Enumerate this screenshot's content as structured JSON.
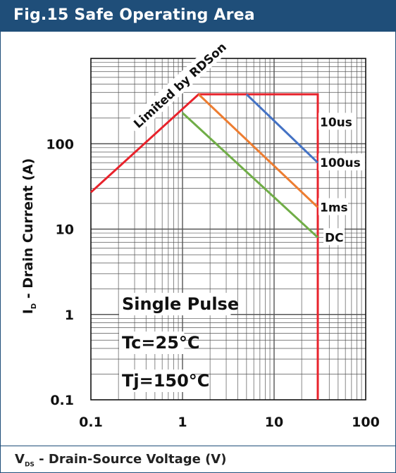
{
  "header": {
    "title": "Fig.15 Safe Operating Area"
  },
  "chart_data": {
    "type": "line",
    "title": "Fig.15 Safe Operating Area",
    "xlabel_main": "V",
    "xlabel_sub": "DS",
    "xlabel_rest": " - Drain-Source Voltage (V)",
    "ylabel_main": "I",
    "ylabel_sub": "D",
    "ylabel_rest": " - Drain Current  (A)",
    "x_scale": "log",
    "y_scale": "log",
    "xlim": [
      0.1,
      100
    ],
    "ylim": [
      0.1,
      1000
    ],
    "grid": true,
    "x_ticks": [
      "0.1",
      "1",
      "10",
      "100"
    ],
    "y_ticks": [
      "0.1",
      "1",
      "10",
      "100"
    ],
    "annotations": {
      "rdson": "Limited by RDSon",
      "single_pulse": "Single Pulse",
      "tc": "Tc=25°C",
      "tj": "Tj=150°C"
    },
    "series": [
      {
        "name": "10us",
        "color": "#e8222b",
        "x": [
          0.1,
          1.5,
          14,
          30,
          30,
          30
        ],
        "y": [
          27,
          380,
          380,
          380,
          180,
          0.1
        ]
      },
      {
        "name": "100us",
        "color": "#4472c4",
        "x": [
          5,
          30
        ],
        "y": [
          380,
          60
        ]
      },
      {
        "name": "1ms",
        "color": "#ed7d31",
        "x": [
          1.5,
          30
        ],
        "y": [
          380,
          18
        ]
      },
      {
        "name": "DC",
        "color": "#70ad47",
        "x": [
          1,
          30
        ],
        "y": [
          230,
          8
        ]
      }
    ]
  }
}
